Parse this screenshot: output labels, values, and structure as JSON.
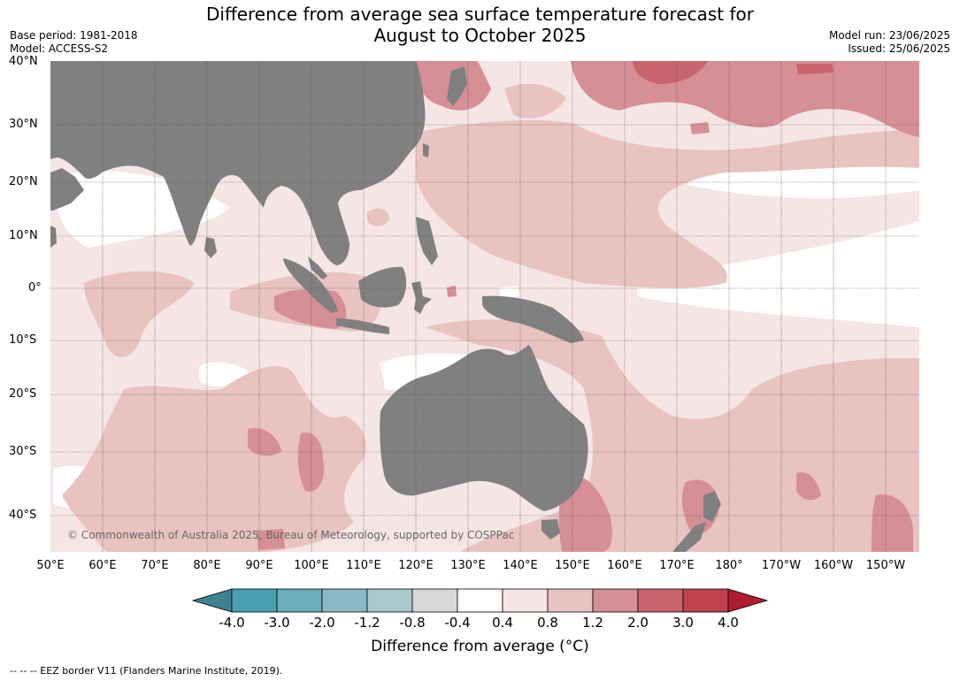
{
  "title_line1": "Difference from average sea surface temperature forecast for",
  "title_line2": "August to October 2025",
  "base_period": "Base period: 1981-2018",
  "model": "Model: ACCESS-S2",
  "model_run": "Model run: 23/06/2025",
  "issued": "Issued: 25/06/2025",
  "lat_labels": [
    "40°N",
    "30°N",
    "20°N",
    "10°N",
    "0°",
    "10°S",
    "20°S",
    "30°S",
    "40°S"
  ],
  "lon_labels": [
    "50°E",
    "60°E",
    "70°E",
    "80°E",
    "90°E",
    "100°E",
    "110°E",
    "120°E",
    "130°E",
    "140°E",
    "150°E",
    "160°E",
    "170°E",
    "180°",
    "170°W",
    "160°W",
    "150°W"
  ],
  "copyright": "© Commonwealth of Australia 2025, Bureau of Meteorology, supported by COSPPac",
  "colorbar": {
    "ticks": [
      "-4.0",
      "-3.0",
      "-2.0",
      "-1.2",
      "-0.8",
      "-0.4",
      "0.4",
      "0.8",
      "1.2",
      "2.0",
      "3.0",
      "4.0"
    ],
    "colors": [
      "#3e828f",
      "#4aa0b2",
      "#6aaebc",
      "#8ab9c5",
      "#a9c9cd",
      "#d8d8d8",
      "#ffffff",
      "#f5e6e5",
      "#e8c3c0",
      "#d68f95",
      "#c8646d",
      "#c0424f",
      "#b01c32"
    ],
    "label": "Difference from average (°C)"
  },
  "footer": "--  --  -- EEZ border V11 (Flanders Marine Institute, 2019).",
  "colors": {
    "land": "#808080",
    "grid": "#555555"
  }
}
